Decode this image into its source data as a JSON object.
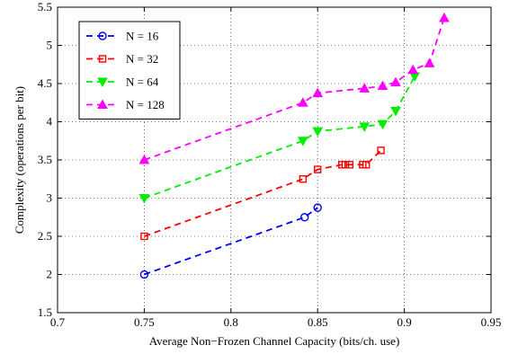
{
  "chart_data": {
    "type": "line",
    "title": "",
    "xlabel": "Average Non−Frozen Channel Capacity (bits/ch. use)",
    "ylabel": "Complexity (operations per bit)",
    "xlim": [
      0.7,
      0.95
    ],
    "ylim": [
      1.5,
      5.5
    ],
    "xticks": [
      0.7,
      0.75,
      0.8,
      0.85,
      0.9,
      0.95
    ],
    "xtick_labels": [
      "0.7",
      "0.75",
      "0.8",
      "0.85",
      "0.9",
      "0.95"
    ],
    "yticks": [
      1.5,
      2,
      2.5,
      3,
      3.5,
      4,
      4.5,
      5,
      5.5
    ],
    "ytick_labels": [
      "1.5",
      "2",
      "2.5",
      "3",
      "3.5",
      "4",
      "4.5",
      "5",
      "5.5"
    ],
    "grid": true,
    "legend_position": "top-left",
    "series": [
      {
        "name": "N = 16",
        "color": "#0000ff",
        "marker": "circle",
        "x": [
          0.75,
          0.8425,
          0.85
        ],
        "y": [
          2.0,
          2.75,
          2.875
        ]
      },
      {
        "name": "N = 32",
        "color": "#ff0000",
        "marker": "square",
        "x": [
          0.75,
          0.8415,
          0.85,
          0.864,
          0.866,
          0.8685,
          0.876,
          0.878,
          0.8865
        ],
        "y": [
          2.5,
          3.25,
          3.375,
          3.4375,
          3.4375,
          3.4375,
          3.4375,
          3.4375,
          3.625
        ]
      },
      {
        "name": "N = 64",
        "color": "#00ee00",
        "marker": "triangle-down",
        "x": [
          0.75,
          0.8415,
          0.85,
          0.877,
          0.8875,
          0.895,
          0.906
        ],
        "y": [
          3.0,
          3.75,
          3.875,
          3.9375,
          3.96875,
          4.1406,
          4.5938
        ]
      },
      {
        "name": "N = 128",
        "color": "#ff00ff",
        "marker": "triangle-up",
        "x": [
          0.75,
          0.8415,
          0.85,
          0.877,
          0.8875,
          0.895,
          0.905,
          0.9145,
          0.923
        ],
        "y": [
          3.5,
          4.25,
          4.375,
          4.4375,
          4.4688,
          4.5156,
          4.6797,
          4.7656,
          5.3594
        ]
      }
    ]
  }
}
